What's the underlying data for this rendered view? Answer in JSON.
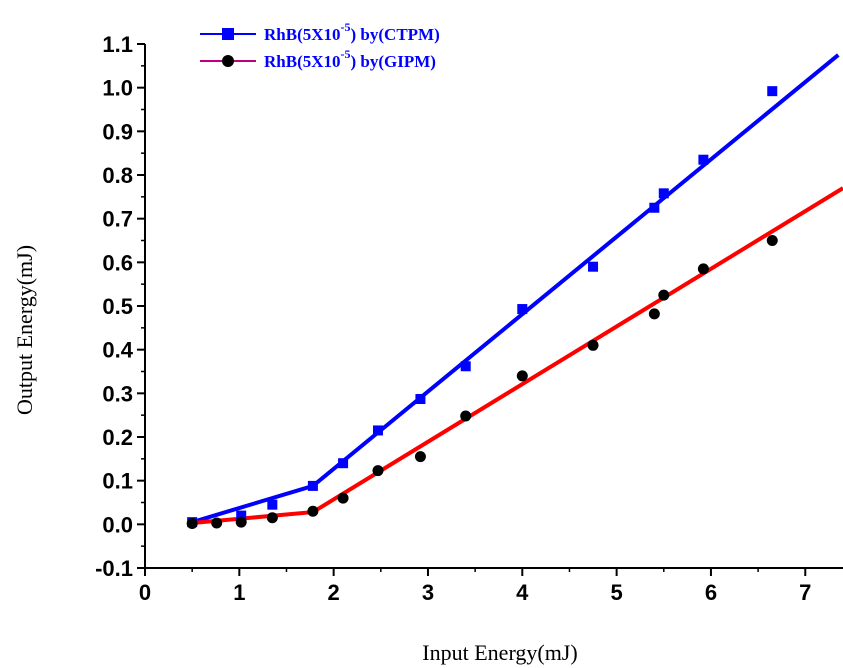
{
  "chart_data": {
    "type": "scatter",
    "title": "",
    "xlabel": "Input Energy(mJ)",
    "ylabel": "Output Energy(mJ)",
    "xlim": [
      0,
      7.4
    ],
    "ylim": [
      -0.1,
      1.1
    ],
    "x_ticks": [
      "0",
      "1",
      "2",
      "3",
      "4",
      "5",
      "6",
      "7"
    ],
    "y_ticks": [
      "-0.1",
      "0.0",
      "0.1",
      "0.2",
      "0.3",
      "0.4",
      "0.5",
      "0.6",
      "0.7",
      "0.8",
      "0.9",
      "1.0",
      "1.1"
    ],
    "grid": false,
    "legend_position": "top-left",
    "series": [
      {
        "name_main": "RhB(5X10",
        "name_sup": "-5",
        "name_tail": ") by(CTPM)",
        "color": "#0000ff",
        "marker": "square",
        "points": [
          {
            "x": 0.5,
            "y": 0.005
          },
          {
            "x": 1.02,
            "y": 0.02
          },
          {
            "x": 1.35,
            "y": 0.045
          },
          {
            "x": 1.78,
            "y": 0.088
          },
          {
            "x": 2.1,
            "y": 0.14
          },
          {
            "x": 2.47,
            "y": 0.215
          },
          {
            "x": 2.92,
            "y": 0.287
          },
          {
            "x": 3.4,
            "y": 0.362
          },
          {
            "x": 4.0,
            "y": 0.493
          },
          {
            "x": 4.75,
            "y": 0.59
          },
          {
            "x": 5.4,
            "y": 0.725
          },
          {
            "x": 5.5,
            "y": 0.758
          },
          {
            "x": 5.92,
            "y": 0.835
          },
          {
            "x": 6.65,
            "y": 0.992
          }
        ],
        "fit_line": [
          {
            "x": 0.5,
            "y": 0.005
          },
          {
            "x": 1.78,
            "y": 0.088
          },
          {
            "x": 7.35,
            "y": 1.075
          }
        ]
      },
      {
        "name_main": "RhB(5X10",
        "name_sup": "-5",
        "name_tail": ") by(GIPM)",
        "color": "#000000",
        "line_color": "#ff0000",
        "legend_line_color": "#c0007f",
        "marker": "circle",
        "points": [
          {
            "x": 0.5,
            "y": 0.002
          },
          {
            "x": 0.76,
            "y": 0.003
          },
          {
            "x": 1.02,
            "y": 0.005
          },
          {
            "x": 1.35,
            "y": 0.015
          },
          {
            "x": 1.78,
            "y": 0.03
          },
          {
            "x": 2.1,
            "y": 0.06
          },
          {
            "x": 2.47,
            "y": 0.123
          },
          {
            "x": 2.92,
            "y": 0.155
          },
          {
            "x": 3.4,
            "y": 0.248
          },
          {
            "x": 4.0,
            "y": 0.34
          },
          {
            "x": 4.75,
            "y": 0.41
          },
          {
            "x": 5.4,
            "y": 0.482
          },
          {
            "x": 5.5,
            "y": 0.525
          },
          {
            "x": 5.92,
            "y": 0.585
          },
          {
            "x": 6.65,
            "y": 0.65
          }
        ],
        "fit_line": [
          {
            "x": 0.5,
            "y": 0.003
          },
          {
            "x": 1.78,
            "y": 0.028
          },
          {
            "x": 7.4,
            "y": 0.77
          }
        ]
      }
    ]
  }
}
